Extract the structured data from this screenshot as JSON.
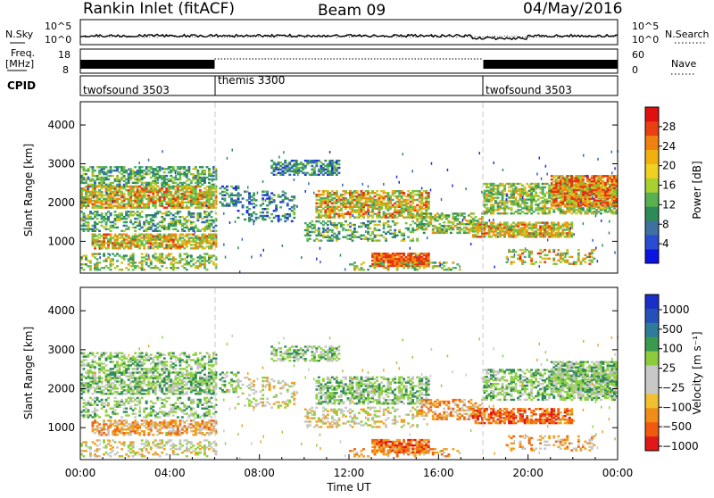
{
  "header": {
    "station": "Rankin Inlet (fitACF)",
    "beam": "Beam 09",
    "date": "04/May/2016"
  },
  "chart_data": [
    {
      "type": "line",
      "panel": "noise",
      "left_label": "N.Sky",
      "right_label": "N.Search",
      "left_ticks": [
        "10^5",
        "10^0"
      ],
      "right_ticks": [
        "10^5",
        "10^0"
      ]
    },
    {
      "type": "line",
      "panel": "frequency-nave",
      "left_label_1": "Freq.",
      "left_label_2": "[MHz]",
      "right_label": "Nave",
      "left_ticks": [
        18,
        8
      ],
      "right_ticks": [
        60,
        0
      ]
    },
    {
      "type": "table",
      "panel": "cpid",
      "label": "CPID",
      "segments": [
        {
          "name": "twofsound 3503",
          "start": 0,
          "end": 6
        },
        {
          "name": "themis 3300",
          "start": 6,
          "end": 18
        },
        {
          "name": "twofsound 3503",
          "start": 18,
          "end": 24
        }
      ]
    },
    {
      "type": "heatmap",
      "panel": "power",
      "ylabel": "Slant Range [km]",
      "ylim": [
        180,
        4600
      ],
      "yticks": [
        1000,
        2000,
        3000,
        4000
      ],
      "colorbar_label": "Power [dB]",
      "colorbar_ticks": [
        4,
        8,
        12,
        16,
        20,
        24,
        28
      ]
    },
    {
      "type": "heatmap",
      "panel": "velocity",
      "ylabel": "Slant Range [km]",
      "ylim": [
        180,
        4600
      ],
      "yticks": [
        1000,
        2000,
        3000,
        4000
      ],
      "colorbar_label": "Velocity [m s⁻¹]",
      "colorbar_ticks": [
        "1000",
        "500",
        "100",
        "25",
        "−25",
        "−100",
        "−500",
        "−1000"
      ]
    }
  ],
  "x_axis": {
    "label": "Time UT",
    "xlim": [
      0,
      24
    ],
    "tick_labels": [
      "00:00",
      "04:00",
      "08:00",
      "12:00",
      "16:00",
      "20:00",
      "00:00"
    ]
  }
}
